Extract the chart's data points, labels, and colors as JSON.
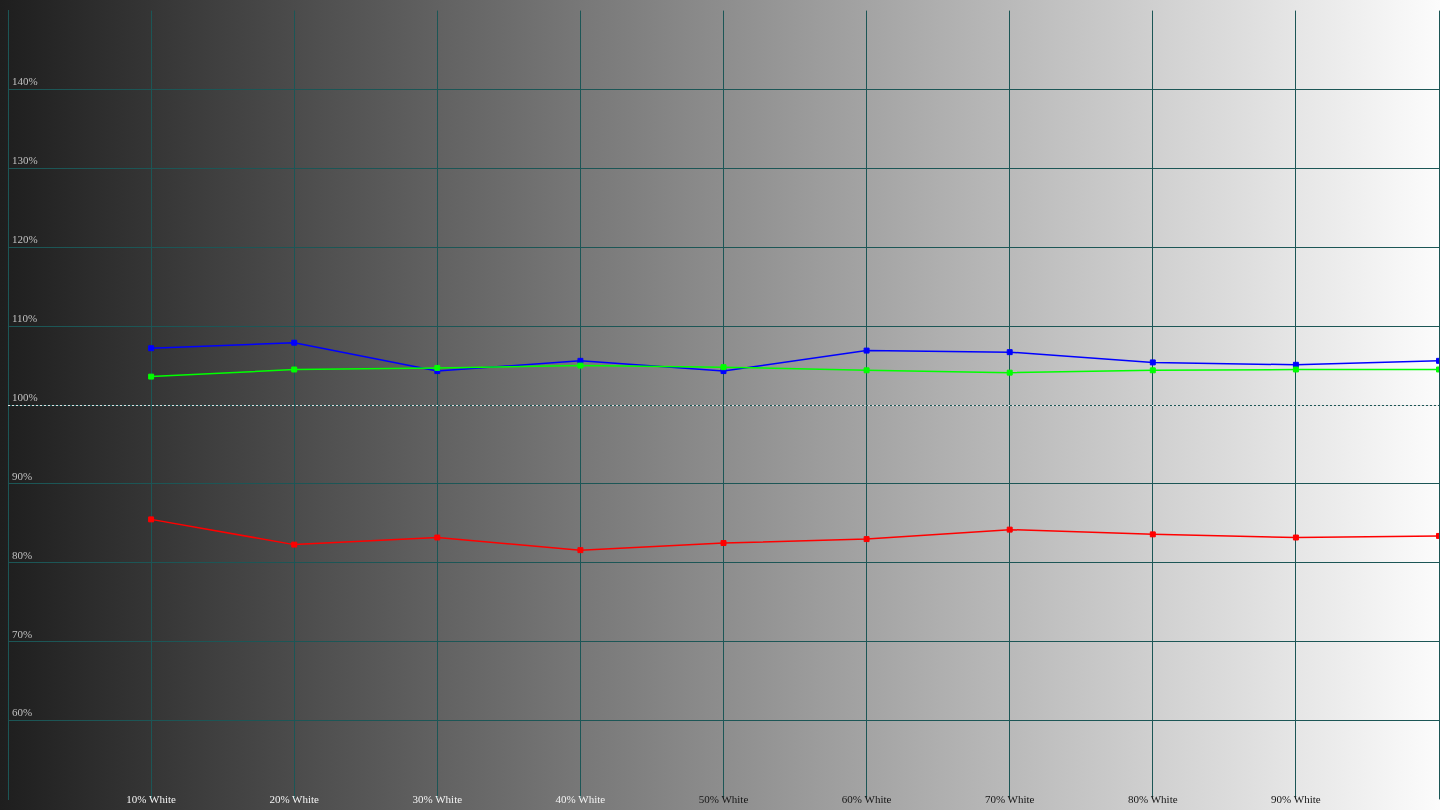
{
  "chart_data": {
    "type": "line",
    "x": [
      10,
      20,
      30,
      40,
      50,
      60,
      70,
      80,
      90,
      100
    ],
    "xlim": [
      0,
      100
    ],
    "xticks": [
      {
        "value": 10,
        "label": "10% White"
      },
      {
        "value": 20,
        "label": "20% White"
      },
      {
        "value": 30,
        "label": "30% White"
      },
      {
        "value": 40,
        "label": "40% White"
      },
      {
        "value": 50,
        "label": "50% White"
      },
      {
        "value": 60,
        "label": "60% White"
      },
      {
        "value": 70,
        "label": "70% White"
      },
      {
        "value": 80,
        "label": "80% White"
      },
      {
        "value": 90,
        "label": "90% White"
      }
    ],
    "ylim": [
      50,
      150
    ],
    "yticks": [
      {
        "value": 60,
        "label": "60%"
      },
      {
        "value": 70,
        "label": "70%"
      },
      {
        "value": 80,
        "label": "80%"
      },
      {
        "value": 90,
        "label": "90%"
      },
      {
        "value": 100,
        "label": "100%"
      },
      {
        "value": 110,
        "label": "110%"
      },
      {
        "value": 120,
        "label": "120%"
      },
      {
        "value": 130,
        "label": "130%"
      },
      {
        "value": 140,
        "label": "140%"
      }
    ],
    "grid": true,
    "legend": false,
    "marker": "square",
    "line_style": "solid",
    "series": [
      {
        "color": "#ff0000",
        "values": [
          85.5,
          82.3,
          83.2,
          81.6,
          82.5,
          83.0,
          84.2,
          83.6,
          83.2,
          83.4
        ]
      },
      {
        "color": "#00ff00",
        "values": [
          103.6,
          104.5,
          104.7,
          105.0,
          104.8,
          104.4,
          104.1,
          104.4,
          104.5,
          104.5
        ]
      },
      {
        "color": "#0000ff",
        "values": [
          107.2,
          107.9,
          104.3,
          105.6,
          104.3,
          106.9,
          106.7,
          105.4,
          105.1,
          105.6
        ]
      }
    ],
    "ref_lines": [
      {
        "axis": "y",
        "value": 100,
        "color": "#e0e0e0",
        "line_style": "dotted"
      }
    ]
  }
}
